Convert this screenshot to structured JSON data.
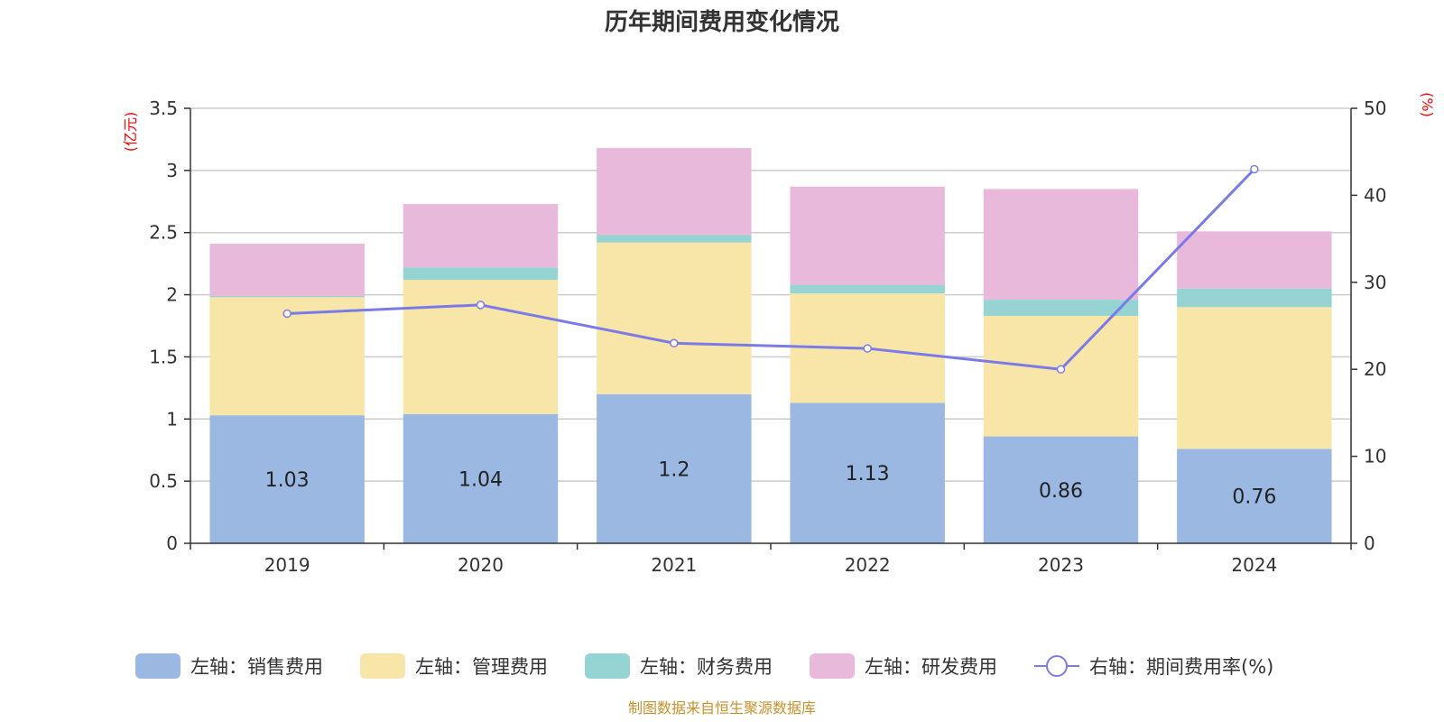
{
  "chart_data": {
    "type": "bar",
    "stacked": true,
    "title": "历年期间费用变化情况",
    "categories": [
      "2019",
      "2020",
      "2021",
      "2022",
      "2023",
      "2024"
    ],
    "left_axis": {
      "unit": "(亿元)",
      "ylim": [
        0,
        3.5
      ],
      "ticks": [
        "0",
        "0.5",
        "1",
        "1.5",
        "2",
        "2.5",
        "3",
        "3.5"
      ]
    },
    "right_axis": {
      "unit": "(%)",
      "ylim": [
        0,
        50
      ],
      "ticks": [
        "0",
        "10",
        "20",
        "30",
        "40",
        "50"
      ]
    },
    "series": [
      {
        "name": "左轴：销售费用",
        "color": "#9bb8e2",
        "axis": "left",
        "values": [
          1.03,
          1.04,
          1.2,
          1.13,
          0.86,
          0.76
        ],
        "labels": [
          "1.03",
          "1.04",
          "1.2",
          "1.13",
          "0.86",
          "0.76"
        ]
      },
      {
        "name": "左轴：管理费用",
        "color": "#f8e6a8",
        "axis": "left",
        "values": [
          0.95,
          1.08,
          1.22,
          0.88,
          0.97,
          1.14
        ]
      },
      {
        "name": "左轴：财务费用",
        "color": "#96d3d3",
        "axis": "left",
        "values": [
          0.01,
          0.1,
          0.06,
          0.07,
          0.13,
          0.15
        ]
      },
      {
        "name": "左轴：研发费用",
        "color": "#e8b9da",
        "axis": "left",
        "values": [
          0.42,
          0.51,
          0.7,
          0.79,
          0.89,
          0.46
        ]
      }
    ],
    "line_series": {
      "name": "右轴：期间费用率(%)",
      "color": "#7b7be8",
      "axis": "right",
      "values": [
        26.4,
        27.4,
        23.0,
        22.4,
        20.0,
        43.0
      ]
    },
    "legend_position": "bottom",
    "grid": true
  },
  "source": "制图数据来自恒生聚源数据库"
}
